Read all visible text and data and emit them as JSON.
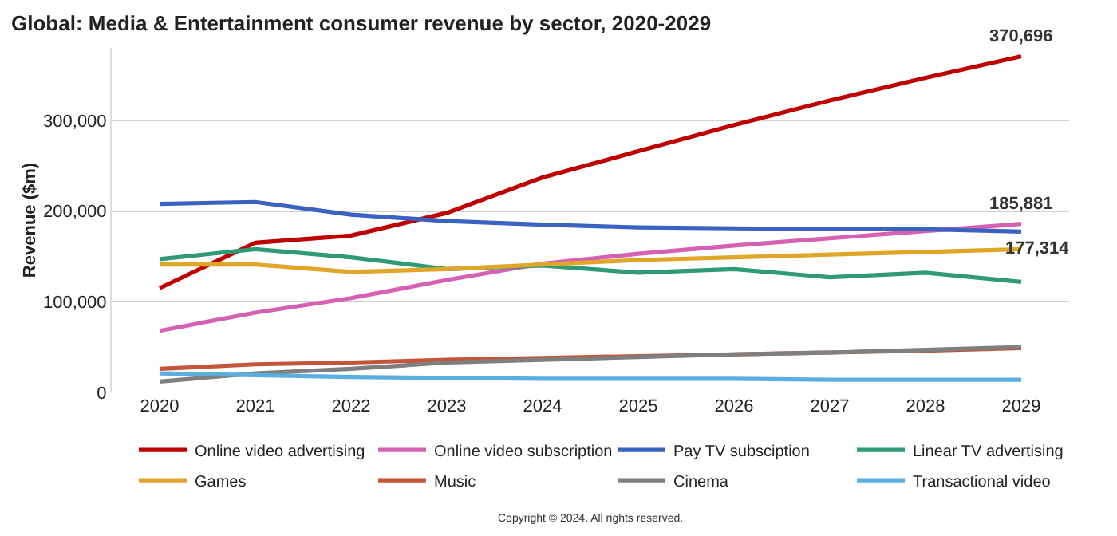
{
  "chart_data": {
    "type": "line",
    "title": "Global: Media & Entertainment consumer revenue by sector, 2020-2029",
    "ylabel": "Revenue ($m)",
    "categories": [
      "2020",
      "2021",
      "2022",
      "2023",
      "2024",
      "2025",
      "2026",
      "2027",
      "2028",
      "2029"
    ],
    "series": [
      {
        "name": "Online video advertising",
        "color": "#c00000",
        "values": [
          115000,
          165000,
          173000,
          198000,
          237000,
          266000,
          295000,
          322000,
          347000,
          370696
        ]
      },
      {
        "name": "Online video subscription",
        "color": "#d660b4",
        "values": [
          68000,
          88000,
          104000,
          124000,
          142000,
          153000,
          162000,
          170000,
          178000,
          185881
        ]
      },
      {
        "name": "Pay TV subsciption",
        "color": "#3a62c0",
        "values": [
          208000,
          210000,
          196000,
          189000,
          185000,
          182000,
          181000,
          180000,
          180000,
          177314
        ]
      },
      {
        "name": "Linear TV advertising",
        "color": "#2e9a78",
        "values": [
          147000,
          158000,
          149000,
          136000,
          140000,
          132000,
          136000,
          127000,
          132000,
          122000
        ]
      },
      {
        "name": "Games",
        "color": "#e0a62a",
        "values": [
          141000,
          141000,
          133000,
          136000,
          141000,
          146000,
          149000,
          152000,
          155000,
          158000
        ]
      },
      {
        "name": "Music",
        "color": "#c4553a",
        "values": [
          26000,
          31000,
          33000,
          36000,
          38000,
          40000,
          42000,
          44000,
          46000,
          49000
        ]
      },
      {
        "name": "Cinema",
        "color": "#7f7f7f",
        "values": [
          12000,
          21000,
          26000,
          33000,
          36000,
          39000,
          42000,
          44000,
          47000,
          50000
        ]
      },
      {
        "name": "Transactional video",
        "color": "#5aaee0",
        "values": [
          21000,
          19000,
          17000,
          16000,
          15000,
          15000,
          15000,
          14000,
          14000,
          14000
        ]
      }
    ],
    "ylim": [
      0,
      380000
    ],
    "yticks": [
      {
        "value": 0,
        "label": "0"
      },
      {
        "value": 100000,
        "label": "100,000"
      },
      {
        "value": 200000,
        "label": "200,000"
      },
      {
        "value": 300000,
        "label": "300,000"
      }
    ],
    "grid": "y",
    "legend": "bottom",
    "marker": "none",
    "line_style": "solid",
    "annotations": [
      {
        "text": "370,696",
        "x": "2029",
        "y": 370696
      },
      {
        "text": "185,881",
        "x": "2029",
        "y": 185881
      },
      {
        "text": "177,314",
        "x": "2029",
        "y": 177314
      },
      "Copyright © 2024. All rights reserved."
    ]
  }
}
